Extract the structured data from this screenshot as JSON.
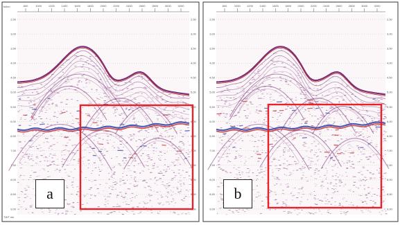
{
  "panels": [
    {
      "id": "a",
      "label": "a",
      "corner_text_top": "ts/km",
      "corner_text_bottom": "TWT ms",
      "depth_ticks": [
        "2,50",
        "3,00",
        "3,50",
        "4,00",
        "4,50",
        "5,00",
        "5,50",
        "6,00",
        "6,50",
        "7,00",
        "7,50",
        "8,00",
        "8,50",
        "9,00"
      ],
      "trace_ticks": [
        "800",
        "1000",
        "1200",
        "1400",
        "1600",
        "1800",
        "2000",
        "2200",
        "2400",
        "2600",
        "2800",
        "3000",
        "3200"
      ]
    },
    {
      "id": "b",
      "label": "b",
      "corner_text_top": "",
      "corner_text_bottom": "",
      "depth_ticks": [
        "2,50",
        "3,00",
        "3,50",
        "4,00",
        "4,50",
        "5,00",
        "5,50",
        "6,00",
        "6,50",
        "7,00",
        "7,50",
        "8,00",
        "8,50",
        "9,00"
      ],
      "trace_ticks": [
        "800",
        "1000",
        "1200",
        "1400",
        "1600",
        "1800",
        "2000",
        "2200",
        "2400",
        "2600",
        "2800",
        "3000",
        "3200"
      ]
    }
  ],
  "colors": {
    "seismic_base": "#f1e3ea",
    "seismic_purple": "#7a2f78",
    "seismic_red": "#c42a2a",
    "seismic_blue": "#2c3fa8",
    "highlight_box": "#e8202a",
    "frame": "#333333"
  }
}
